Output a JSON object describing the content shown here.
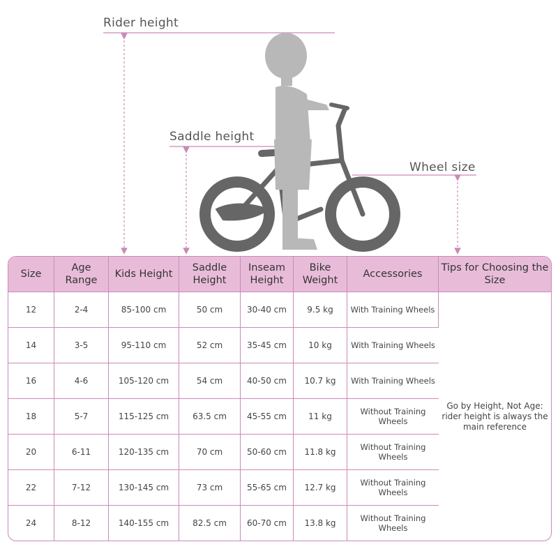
{
  "diagram": {
    "labels": {
      "rider_height": "Rider height",
      "saddle_height": "Saddle height",
      "wheel_size": "Wheel size"
    },
    "colors": {
      "accent": "#c98ab8",
      "header_bg": "#e8bcd9",
      "bike": "#666666",
      "child": "#b8b8b8"
    }
  },
  "table": {
    "headers": [
      "Size",
      "Age Range",
      "Kids Height",
      "Saddle Height",
      "Inseam Height",
      "Bike Weight",
      "Accessories",
      "Tips for Choosing the Size"
    ],
    "rows": [
      [
        "12",
        "2-4",
        "85-100 cm",
        "50 cm",
        "30-40 cm",
        "9.5 kg",
        "With Training Wheels"
      ],
      [
        "14",
        "3-5",
        "95-110 cm",
        "52 cm",
        "35-45 cm",
        "10 kg",
        "With Training Wheels"
      ],
      [
        "16",
        "4-6",
        "105-120 cm",
        "54 cm",
        "40-50 cm",
        "10.7 kg",
        "With Training Wheels"
      ],
      [
        "18",
        "5-7",
        "115-125 cm",
        "63.5 cm",
        "45-55 cm",
        "11 kg",
        "Without Training Wheels"
      ],
      [
        "20",
        "6-11",
        "120-135 cm",
        "70 cm",
        "50-60 cm",
        "11.8 kg",
        "Without Training Wheels"
      ],
      [
        "22",
        "7-12",
        "130-145 cm",
        "73 cm",
        "55-65 cm",
        "12.7 kg",
        "Without Training Wheels"
      ],
      [
        "24",
        "8-12",
        "140-155 cm",
        "82.5 cm",
        "60-70 cm",
        "13.8 kg",
        "Without Training Wheels"
      ]
    ],
    "tip": "Go by Height, Not Age: rider height is always the main reference"
  }
}
